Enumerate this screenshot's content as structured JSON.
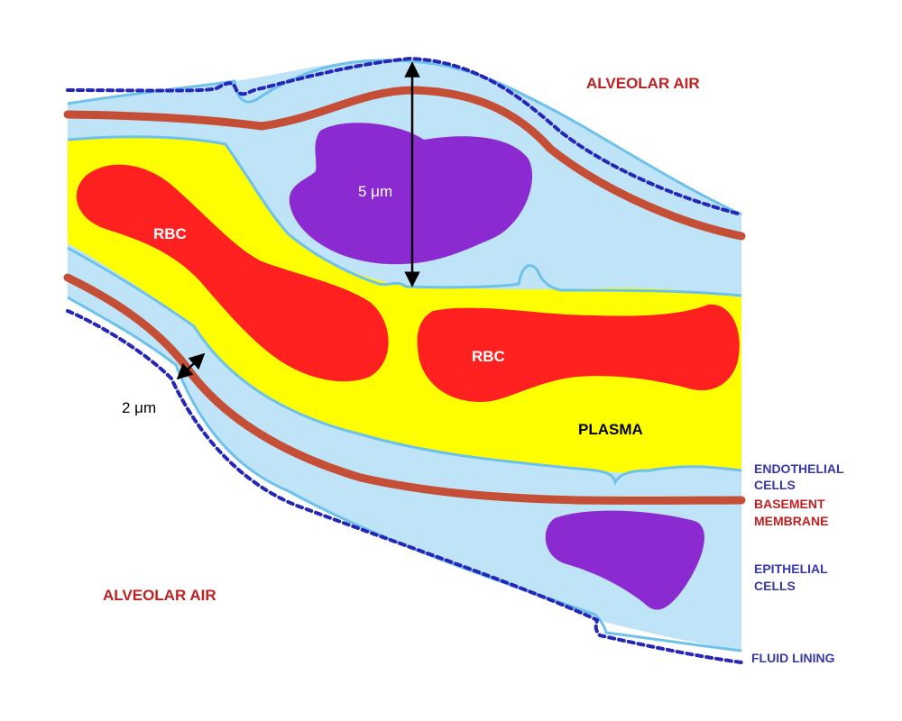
{
  "colors": {
    "interstitium": "#bfe3f7",
    "membrane_edge": "#6ec1ea",
    "plasma": "#ffff00",
    "rbc": "#ff2020",
    "nucleus": "#8a2ad0",
    "basement": "#c44e36",
    "fluid": "#2626b8",
    "label_red": "#c02020",
    "label_blue": "#3838a8"
  },
  "labels": {
    "alveolar_air_top": "ALVEOLAR AIR",
    "alveolar_air_bottom": "ALVEOLAR AIR",
    "rbc_left": "RBC",
    "rbc_right": "RBC",
    "plasma": "PLASMA",
    "dist_5": "5 μm",
    "dist_2": "2 μm",
    "endothelial": [
      "ENDOTHELIAL",
      "CELLS"
    ],
    "basement": [
      "BASEMENT",
      "MEMBRANE"
    ],
    "epithelial": [
      "EPITHELIAL",
      "CELLS"
    ],
    "fluid_lining": "FLUID LINING"
  },
  "icons": [
    "double-arrow-vertical-icon",
    "double-arrow-diagonal-icon"
  ]
}
